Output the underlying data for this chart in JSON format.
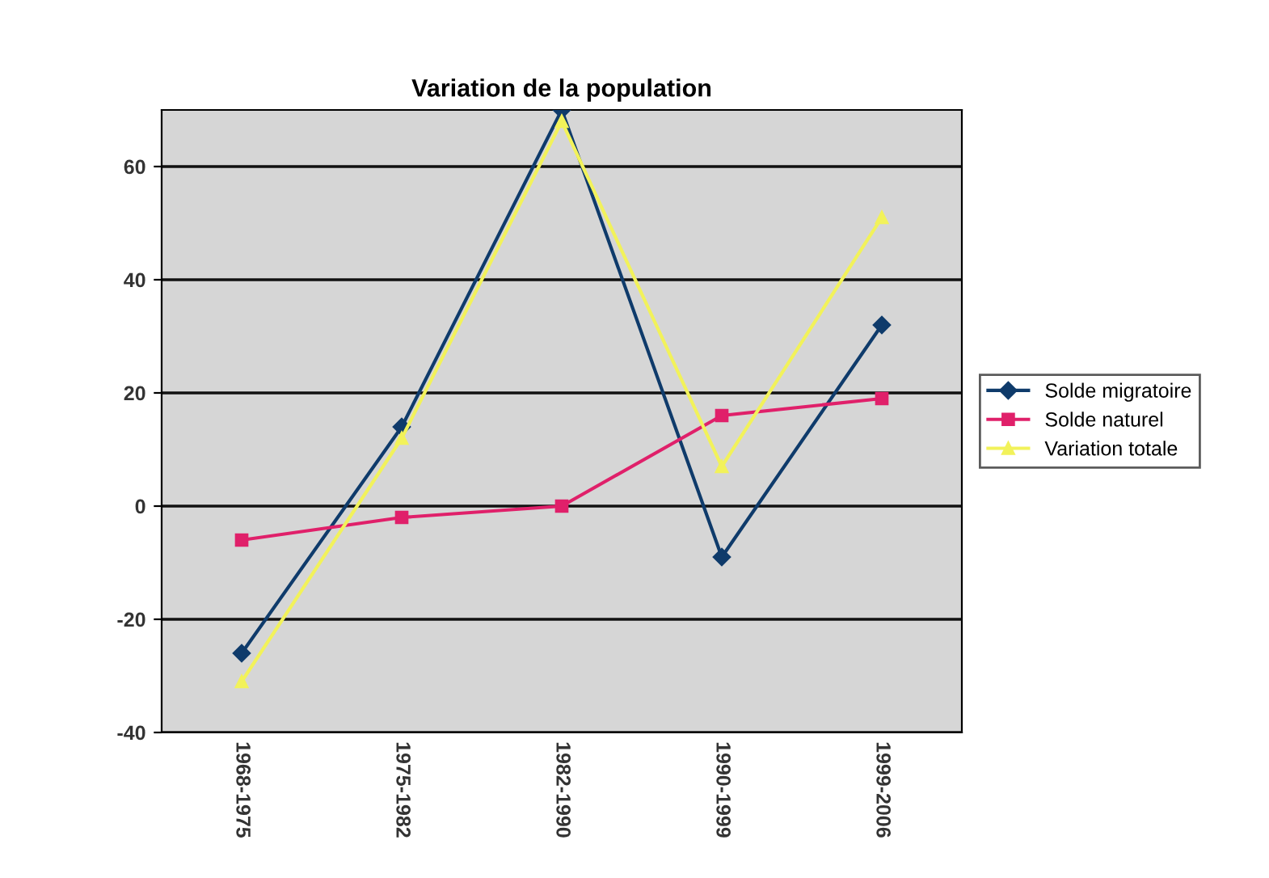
{
  "chart_data": {
    "type": "line",
    "title": "Variation de la population",
    "categories": [
      "1968-1975",
      "1975-1982",
      "1982-1990",
      "1990-1999",
      "1999-2006"
    ],
    "series": [
      {
        "name": "Solde migratoire",
        "color": "#0f3b6b",
        "marker": "diamond",
        "values": [
          -26,
          14,
          70,
          -9,
          32
        ]
      },
      {
        "name": "Solde naturel",
        "color": "#e0206a",
        "marker": "square",
        "values": [
          -6,
          -2,
          0,
          16,
          19
        ]
      },
      {
        "name": "Variation totale",
        "color": "#f2f25a",
        "marker": "triangle",
        "values": [
          -31,
          12,
          68,
          7,
          51
        ]
      }
    ],
    "ylim": [
      -40,
      70
    ],
    "yticks": [
      {
        "value": -40,
        "label": "-40"
      },
      {
        "value": -20,
        "label": "-20"
      },
      0,
      20,
      40,
      60
    ],
    "grid": "y",
    "legend": "right"
  }
}
